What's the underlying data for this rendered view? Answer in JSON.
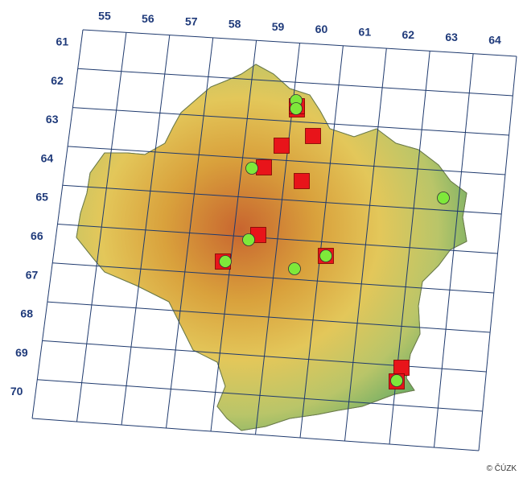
{
  "map": {
    "column_labels": [
      "55",
      "56",
      "57",
      "58",
      "59",
      "60",
      "61",
      "62",
      "63",
      "64"
    ],
    "row_labels": [
      "61",
      "62",
      "63",
      "64",
      "65",
      "66",
      "67",
      "68",
      "69",
      "70"
    ],
    "copyright": "© ČÚZK",
    "colors": {
      "grid": "#1f3a6e",
      "label": "#1f3a7a",
      "square_marker": "#e8141a",
      "circle_marker": "#7ee83a",
      "marker_stroke": "#333333"
    },
    "square_records": [
      {
        "id": "sq1"
      },
      {
        "id": "sq2"
      },
      {
        "id": "sq3"
      },
      {
        "id": "sq4"
      },
      {
        "id": "sq5"
      },
      {
        "id": "sq6"
      },
      {
        "id": "sq7"
      },
      {
        "id": "sq8"
      },
      {
        "id": "sq9"
      },
      {
        "id": "sq10"
      },
      {
        "id": "sq11"
      }
    ],
    "circle_records": [
      {
        "id": "c1"
      },
      {
        "id": "c2"
      },
      {
        "id": "c3"
      },
      {
        "id": "c4"
      },
      {
        "id": "c5"
      },
      {
        "id": "c6"
      },
      {
        "id": "c7"
      },
      {
        "id": "c8"
      },
      {
        "id": "c9"
      }
    ]
  }
}
